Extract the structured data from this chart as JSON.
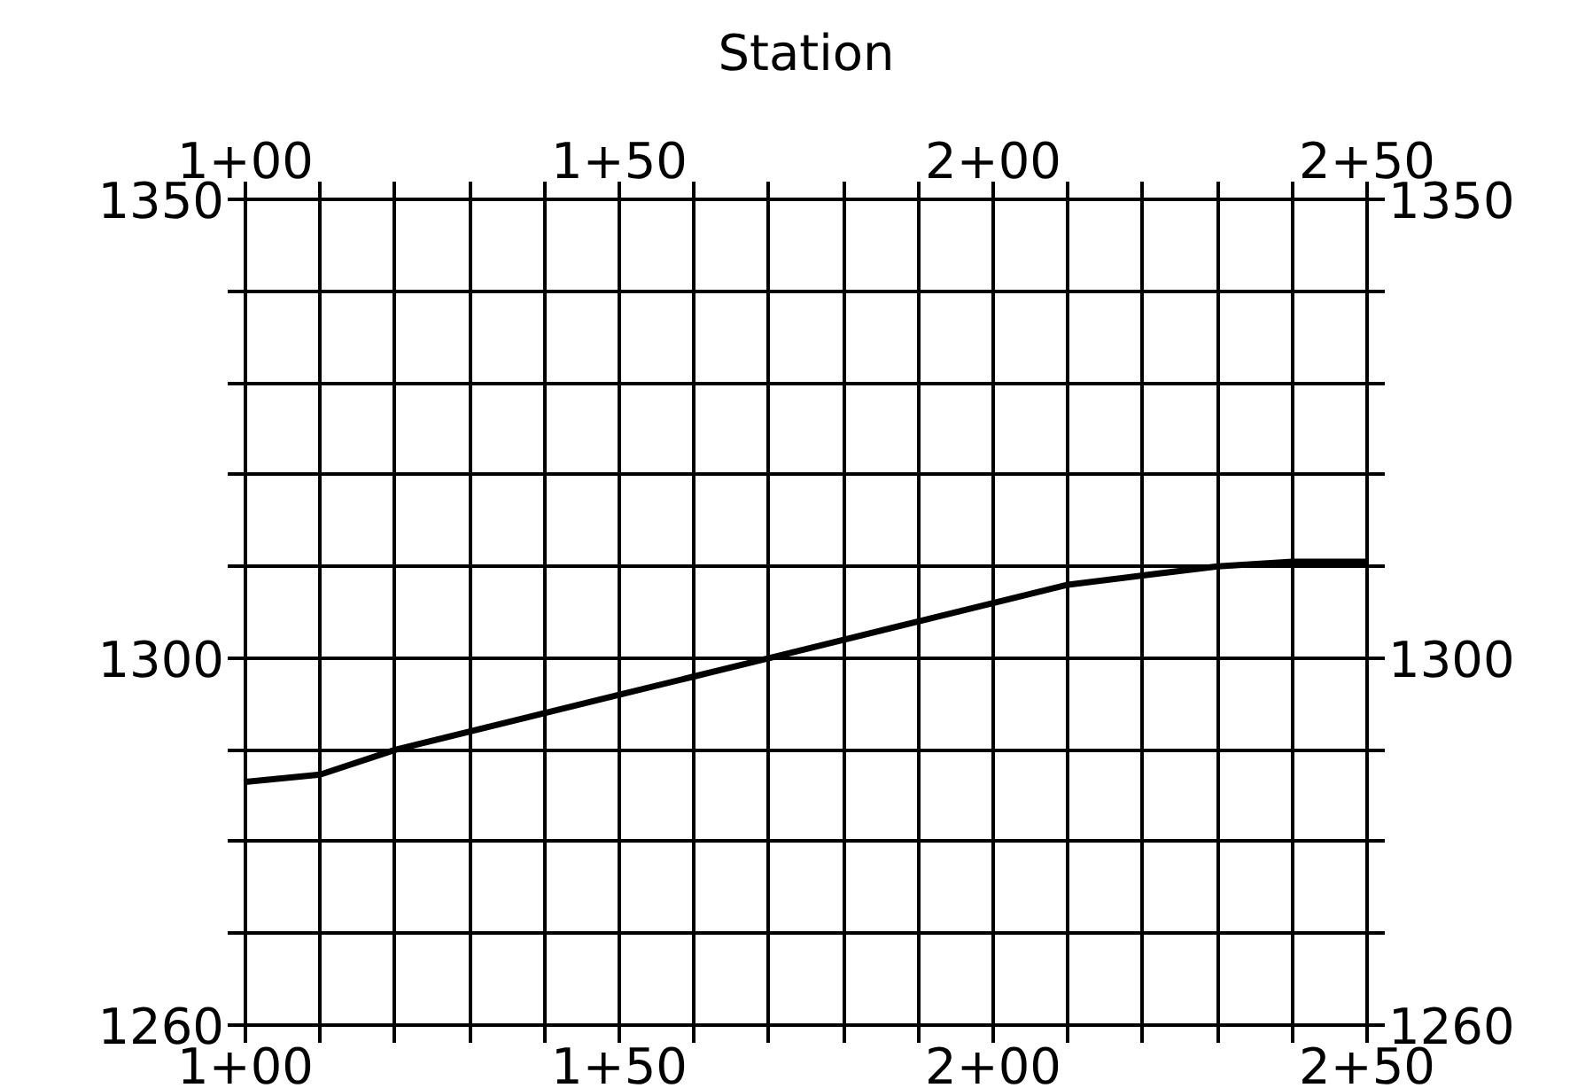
{
  "chart_data": {
    "type": "line",
    "x2label": "Station",
    "categories": [
      "1+00",
      null,
      null,
      null,
      null,
      "1+50",
      null,
      null,
      null,
      null,
      "2+00",
      null,
      null,
      null,
      null,
      "2+50"
    ],
    "series": [
      {
        "color": "#000000",
        "values": [
          1286.5,
          1287.3,
          1290,
          1292,
          1294,
          1296,
          1298,
          1300,
          1302,
          1304,
          1306,
          1308,
          1309,
          1310,
          1310.5,
          1310.5
        ]
      }
    ],
    "ylim": [
      1260,
      1350
    ],
    "y2lim": [
      1260,
      1350
    ],
    "yticks": [
      1260,
      {
        "value": 1270,
        "label": null
      },
      {
        "value": 1280,
        "label": null
      },
      {
        "value": 1290,
        "label": null
      },
      1300,
      {
        "value": 1310,
        "label": null
      },
      {
        "value": 1320,
        "label": null
      },
      {
        "value": 1330,
        "label": null
      },
      {
        "value": 1340,
        "label": null
      },
      1350
    ],
    "y2ticks": [
      1260,
      {
        "value": 1270,
        "label": null
      },
      {
        "value": 1280,
        "label": null
      },
      {
        "value": 1290,
        "label": null
      },
      1300,
      {
        "value": 1310,
        "label": null
      },
      {
        "value": 1320,
        "label": null
      },
      {
        "value": 1330,
        "label": null
      },
      {
        "value": 1340,
        "label": null
      },
      1350
    ],
    "grid": true,
    "marker": "none",
    "line_style": "solid"
  }
}
